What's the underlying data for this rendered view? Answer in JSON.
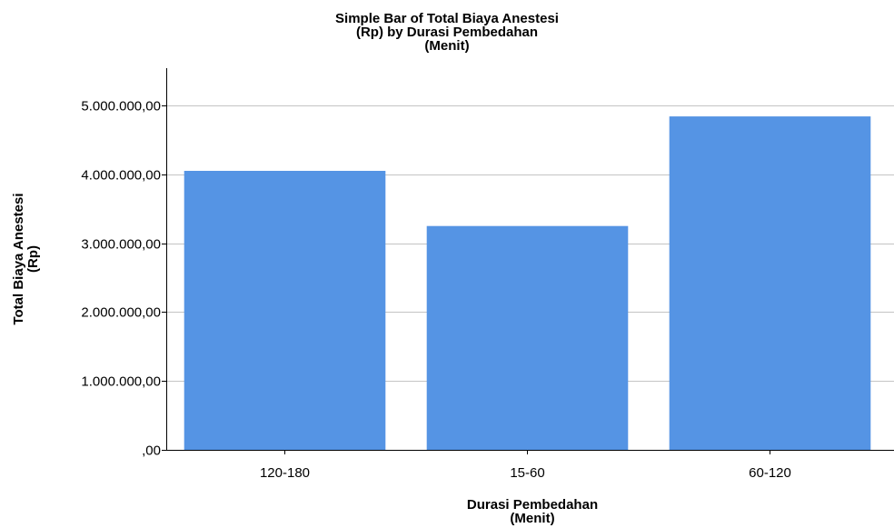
{
  "chart_data": {
    "type": "bar",
    "title": [
      "Simple Bar of Total Biaya Anestesi",
      "(Rp) by Durasi Pembedahan",
      "(Menit)"
    ],
    "xlabel": [
      "Durasi Pembedahan",
      "(Menit)"
    ],
    "ylabel": [
      "Total Biaya Anestesi",
      "(Rp)"
    ],
    "categories": [
      "120-180",
      "15-60",
      "60-120"
    ],
    "values": [
      4050000,
      3250000,
      4840000
    ],
    "ylim": [
      0,
      5500000
    ],
    "yticks": [
      0,
      1000000,
      2000000,
      3000000,
      4000000,
      5000000
    ],
    "ytick_labels": [
      ",00",
      "1.000.000,00",
      "2.000.000,00",
      "3.000.000,00",
      "4.000.000,00",
      "5.000.000,00"
    ],
    "grid": true,
    "legend": "none",
    "colors": {
      "bar": "#5594e4",
      "grid": "#c4c4c4",
      "axis": "#000000"
    }
  }
}
